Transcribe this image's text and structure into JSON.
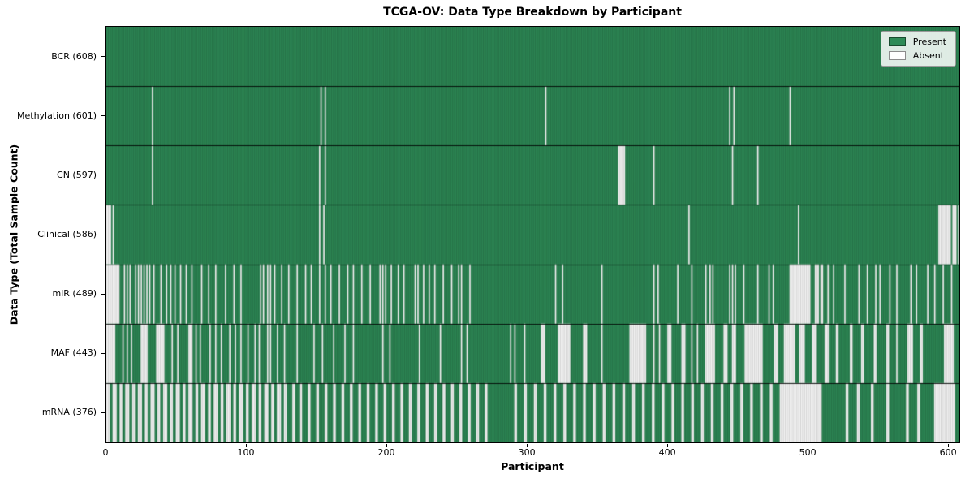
{
  "title": "TCGA-OV: Data Type Breakdown by Participant",
  "xlabel": "Participant",
  "ylabel": "Data Type (Total Sample Count)",
  "legend": {
    "present_label": "Present",
    "absent_label": "Absent"
  },
  "chart_data": {
    "type": "heatmap",
    "title": "TCGA-OV: Data Type Breakdown by Participant",
    "xlabel": "Participant",
    "ylabel": "Data Type (Total Sample Count)",
    "legend_position": "upper right",
    "grid": false,
    "n_participants": 608,
    "x_ticks": [
      0,
      100,
      200,
      300,
      400,
      500,
      600
    ],
    "xlim": [
      0,
      608
    ],
    "colors": {
      "present": "#2e8b57",
      "absent": "#ffffff"
    },
    "rows": [
      {
        "name": "BCR",
        "label": "BCR (608)",
        "present_count": 608,
        "absent_count": 0,
        "absent_ranges": []
      },
      {
        "name": "Methylation",
        "label": "Methylation (601)",
        "present_count": 601,
        "absent_count": 7,
        "absent_ranges": [
          [
            33,
            33
          ],
          [
            153,
            153
          ],
          [
            156,
            156
          ],
          [
            313,
            313
          ],
          [
            444,
            444
          ],
          [
            447,
            447
          ],
          [
            487,
            487
          ]
        ]
      },
      {
        "name": "CN",
        "label": "CN (597)",
        "present_count": 597,
        "absent_count": 11,
        "absent_ranges": [
          [
            33,
            33
          ],
          [
            152,
            152
          ],
          [
            156,
            156
          ],
          [
            365,
            369
          ],
          [
            390,
            390
          ],
          [
            446,
            446
          ],
          [
            464,
            464
          ]
        ]
      },
      {
        "name": "Clinical",
        "label": "Clinical (586)",
        "present_count": 586,
        "absent_count": 22,
        "absent_ranges": [
          [
            0,
            3
          ],
          [
            5,
            5
          ],
          [
            152,
            152
          ],
          [
            155,
            155
          ],
          [
            415,
            415
          ],
          [
            493,
            493
          ],
          [
            593,
            601
          ],
          [
            603,
            605
          ],
          [
            607,
            607
          ]
        ]
      },
      {
        "name": "miR",
        "label": "miR (489)",
        "present_count": 489,
        "absent_count": 119,
        "absent_ranges": [
          [
            0,
            9
          ],
          [
            13,
            13
          ],
          [
            15,
            15
          ],
          [
            17,
            17
          ],
          [
            21,
            21
          ],
          [
            23,
            23
          ],
          [
            25,
            25
          ],
          [
            27,
            27
          ],
          [
            29,
            29
          ],
          [
            31,
            31
          ],
          [
            34,
            34
          ],
          [
            39,
            39
          ],
          [
            43,
            43
          ],
          [
            46,
            46
          ],
          [
            49,
            49
          ],
          [
            53,
            53
          ],
          [
            57,
            57
          ],
          [
            61,
            61
          ],
          [
            68,
            68
          ],
          [
            73,
            73
          ],
          [
            78,
            78
          ],
          [
            85,
            85
          ],
          [
            91,
            91
          ],
          [
            96,
            96
          ],
          [
            110,
            110
          ],
          [
            112,
            112
          ],
          [
            115,
            115
          ],
          [
            117,
            117
          ],
          [
            120,
            120
          ],
          [
            125,
            125
          ],
          [
            130,
            130
          ],
          [
            136,
            136
          ],
          [
            142,
            142
          ],
          [
            146,
            146
          ],
          [
            152,
            152
          ],
          [
            156,
            156
          ],
          [
            160,
            160
          ],
          [
            166,
            166
          ],
          [
            172,
            172
          ],
          [
            176,
            176
          ],
          [
            182,
            182
          ],
          [
            188,
            188
          ],
          [
            195,
            195
          ],
          [
            197,
            197
          ],
          [
            199,
            199
          ],
          [
            203,
            203
          ],
          [
            208,
            208
          ],
          [
            212,
            212
          ],
          [
            220,
            220
          ],
          [
            222,
            222
          ],
          [
            226,
            226
          ],
          [
            230,
            230
          ],
          [
            234,
            234
          ],
          [
            240,
            240
          ],
          [
            246,
            246
          ],
          [
            251,
            251
          ],
          [
            253,
            253
          ],
          [
            259,
            259
          ],
          [
            320,
            320
          ],
          [
            325,
            325
          ],
          [
            353,
            353
          ],
          [
            390,
            390
          ],
          [
            393,
            393
          ],
          [
            407,
            407
          ],
          [
            417,
            417
          ],
          [
            427,
            427
          ],
          [
            430,
            430
          ],
          [
            432,
            432
          ],
          [
            444,
            444
          ],
          [
            446,
            446
          ],
          [
            448,
            448
          ],
          [
            454,
            454
          ],
          [
            464,
            464
          ],
          [
            472,
            472
          ],
          [
            475,
            475
          ],
          [
            487,
            501
          ],
          [
            505,
            507
          ],
          [
            509,
            510
          ],
          [
            514,
            514
          ],
          [
            518,
            518
          ],
          [
            526,
            526
          ],
          [
            536,
            536
          ],
          [
            542,
            542
          ],
          [
            548,
            548
          ],
          [
            551,
            551
          ],
          [
            558,
            558
          ],
          [
            563,
            563
          ],
          [
            573,
            573
          ],
          [
            577,
            577
          ],
          [
            585,
            585
          ],
          [
            590,
            590
          ],
          [
            596,
            596
          ],
          [
            602,
            602
          ]
        ]
      },
      {
        "name": "MAF",
        "label": "MAF (443)",
        "present_count": 443,
        "absent_count": 165,
        "absent_ranges": [
          [
            0,
            6
          ],
          [
            12,
            12
          ],
          [
            15,
            15
          ],
          [
            18,
            18
          ],
          [
            25,
            29
          ],
          [
            36,
            41
          ],
          [
            47,
            47
          ],
          [
            51,
            51
          ],
          [
            59,
            61
          ],
          [
            64,
            64
          ],
          [
            67,
            67
          ],
          [
            74,
            74
          ],
          [
            78,
            78
          ],
          [
            82,
            82
          ],
          [
            88,
            88
          ],
          [
            92,
            92
          ],
          [
            96,
            96
          ],
          [
            101,
            101
          ],
          [
            106,
            106
          ],
          [
            109,
            109
          ],
          [
            115,
            115
          ],
          [
            117,
            117
          ],
          [
            122,
            122
          ],
          [
            127,
            127
          ],
          [
            136,
            136
          ],
          [
            148,
            148
          ],
          [
            154,
            154
          ],
          [
            162,
            162
          ],
          [
            170,
            170
          ],
          [
            176,
            176
          ],
          [
            197,
            197
          ],
          [
            202,
            202
          ],
          [
            223,
            223
          ],
          [
            238,
            238
          ],
          [
            253,
            253
          ],
          [
            257,
            257
          ],
          [
            288,
            288
          ],
          [
            291,
            291
          ],
          [
            298,
            298
          ],
          [
            310,
            312
          ],
          [
            322,
            330
          ],
          [
            340,
            342
          ],
          [
            353,
            353
          ],
          [
            373,
            384
          ],
          [
            390,
            390
          ],
          [
            394,
            394
          ],
          [
            400,
            402
          ],
          [
            410,
            412
          ],
          [
            417,
            417
          ],
          [
            421,
            421
          ],
          [
            427,
            433
          ],
          [
            440,
            442
          ],
          [
            446,
            448
          ],
          [
            455,
            467
          ],
          [
            476,
            478
          ],
          [
            483,
            490
          ],
          [
            494,
            497
          ],
          [
            503,
            505
          ],
          [
            512,
            514
          ],
          [
            520,
            521
          ],
          [
            530,
            531
          ],
          [
            538,
            539
          ],
          [
            547,
            548
          ],
          [
            556,
            557
          ],
          [
            563,
            563
          ],
          [
            571,
            574
          ],
          [
            580,
            581
          ],
          [
            597,
            603
          ]
        ]
      },
      {
        "name": "mRNA",
        "label": "mRNA (376)",
        "present_count": 376,
        "absent_count": 232,
        "absent_ranges": [
          [
            0,
            2
          ],
          [
            5,
            7
          ],
          [
            10,
            11
          ],
          [
            14,
            16
          ],
          [
            19,
            20
          ],
          [
            23,
            25
          ],
          [
            28,
            29
          ],
          [
            32,
            34
          ],
          [
            37,
            38
          ],
          [
            41,
            43
          ],
          [
            46,
            47
          ],
          [
            50,
            52
          ],
          [
            55,
            56
          ],
          [
            59,
            61
          ],
          [
            64,
            65
          ],
          [
            68,
            70
          ],
          [
            73,
            74
          ],
          [
            77,
            79
          ],
          [
            82,
            83
          ],
          [
            86,
            88
          ],
          [
            91,
            92
          ],
          [
            95,
            97
          ],
          [
            100,
            101
          ],
          [
            104,
            106
          ],
          [
            109,
            110
          ],
          [
            113,
            115
          ],
          [
            118,
            119
          ],
          [
            122,
            124
          ],
          [
            127,
            128
          ],
          [
            133,
            134
          ],
          [
            138,
            139
          ],
          [
            144,
            145
          ],
          [
            150,
            151
          ],
          [
            156,
            157
          ],
          [
            162,
            163
          ],
          [
            168,
            169
          ],
          [
            174,
            175
          ],
          [
            180,
            181
          ],
          [
            186,
            187
          ],
          [
            192,
            193
          ],
          [
            198,
            199
          ],
          [
            204,
            205
          ],
          [
            210,
            211
          ],
          [
            216,
            217
          ],
          [
            222,
            223
          ],
          [
            228,
            229
          ],
          [
            234,
            235
          ],
          [
            240,
            241
          ],
          [
            246,
            247
          ],
          [
            252,
            253
          ],
          [
            258,
            259
          ],
          [
            264,
            265
          ],
          [
            270,
            271
          ],
          [
            291,
            292
          ],
          [
            298,
            299
          ],
          [
            305,
            306
          ],
          [
            312,
            313
          ],
          [
            319,
            320
          ],
          [
            326,
            327
          ],
          [
            333,
            334
          ],
          [
            340,
            341
          ],
          [
            347,
            348
          ],
          [
            354,
            355
          ],
          [
            361,
            362
          ],
          [
            368,
            369
          ],
          [
            375,
            376
          ],
          [
            382,
            383
          ],
          [
            389,
            390
          ],
          [
            396,
            397
          ],
          [
            403,
            404
          ],
          [
            410,
            411
          ],
          [
            417,
            418
          ],
          [
            424,
            425
          ],
          [
            431,
            432
          ],
          [
            438,
            439
          ],
          [
            445,
            446
          ],
          [
            452,
            453
          ],
          [
            459,
            460
          ],
          [
            466,
            467
          ],
          [
            473,
            474
          ],
          [
            480,
            509
          ],
          [
            527,
            528
          ],
          [
            535,
            536
          ],
          [
            545,
            546
          ],
          [
            556,
            557
          ],
          [
            570,
            571
          ],
          [
            578,
            579
          ],
          [
            590,
            604
          ]
        ]
      }
    ]
  }
}
